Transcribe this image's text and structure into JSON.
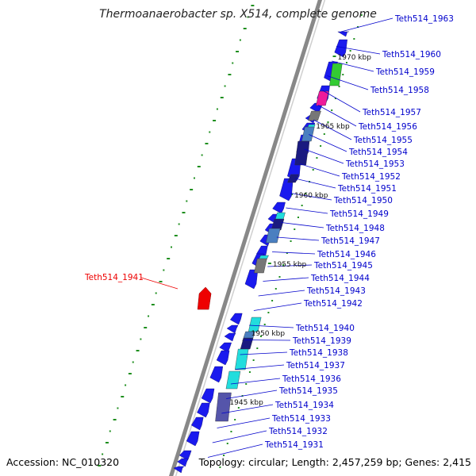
{
  "title": "Thermoanaerobacter sp. X514, complete genome",
  "accession": "Accession: NC_010320",
  "summary": "Topology: circular; Length: 2,457,259 bp; Genes: 2,415",
  "colors": {
    "backbone": "#888888",
    "cds": "#1a1aee",
    "label": "#0000cc",
    "highlight": "#ee0000",
    "tick": "#1f8f1f",
    "green_gene": "#33cc33",
    "magenta_gene": "#ee1a9a",
    "gray_gene": "#777777",
    "cyan_gene": "#22dddd",
    "steel_gene": "#4a7fc0",
    "navy_gene": "#1a1a80",
    "slate_gene": "#5555aa"
  },
  "kbp_markers": [
    "1970 kbp",
    "1965 kbp",
    "1960 kbp",
    "1955 kbp",
    "1950 kbp",
    "1945 kbp"
  ],
  "labels_right": [
    "Teth514_1963",
    "Teth514_1960",
    "Teth514_1959",
    "Teth514_1958",
    "Teth514_1957",
    "Teth514_1956",
    "Teth514_1955",
    "Teth514_1954",
    "Teth514_1953",
    "Teth514_1952",
    "Teth514_1951",
    "Teth514_1950",
    "Teth514_1949",
    "Teth514_1948",
    "Teth514_1947",
    "Teth514_1946",
    "Teth514_1945",
    "Teth514_1944",
    "Teth514_1943",
    "Teth514_1942",
    "Teth514_1940",
    "Teth514_1939",
    "Teth514_1938",
    "Teth514_1937",
    "Teth514_1936",
    "Teth514_1935",
    "Teth514_1934",
    "Teth514_1933",
    "Teth514_1932",
    "Teth514_1931"
  ],
  "label_left": "Teth514_1941"
}
